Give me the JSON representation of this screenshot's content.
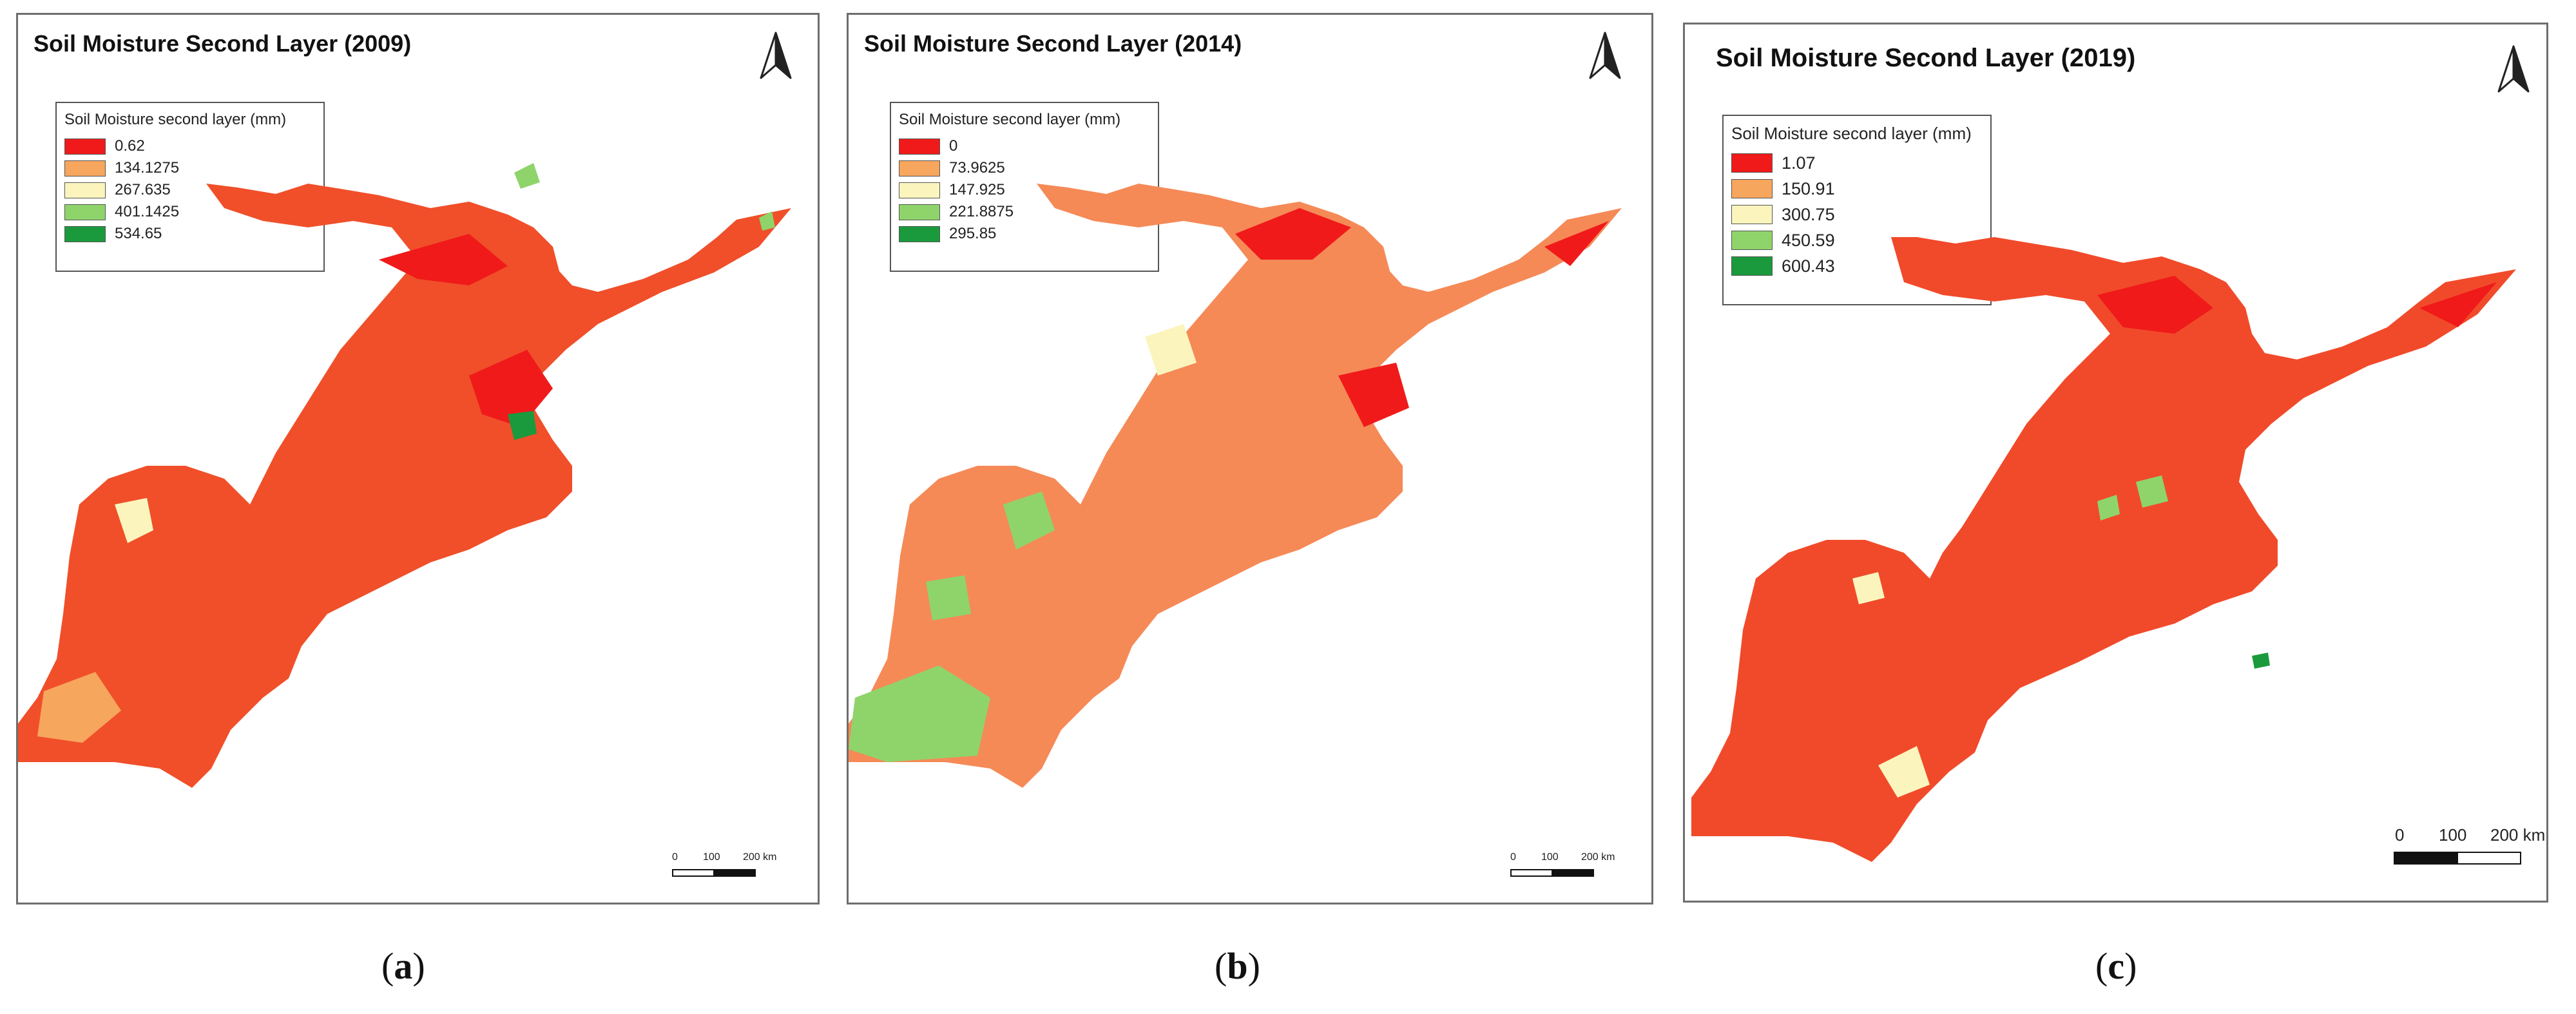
{
  "legend_title": "Soil Moisture second layer (mm)",
  "colors": {
    "class1": "#f01a1a",
    "class2": "#f7a65e",
    "class3": "#fbf5bd",
    "class4": "#8fd46b",
    "class5": "#1a9a3c",
    "map_base_2009": "#f04f2a",
    "map_base_2014": "#f58a57",
    "map_base_2019": "#f14a2a"
  },
  "scale": {
    "labels": [
      "0",
      "100",
      "200 km"
    ]
  },
  "panels": [
    {
      "id": "a",
      "title": "Soil Moisture Second Layer (2009)",
      "caption_letter": "a",
      "legend": [
        "0.62",
        "134.1275",
        "267.635",
        "401.1425",
        "534.65"
      ]
    },
    {
      "id": "b",
      "title": "Soil Moisture Second Layer (2014)",
      "caption_letter": "b",
      "legend": [
        "0",
        "73.9625",
        "147.925",
        "221.8875",
        "295.85"
      ]
    },
    {
      "id": "c",
      "title": "Soil Moisture Second Layer (2019)",
      "caption_letter": "c",
      "legend": [
        "1.07",
        "150.91",
        "300.75",
        "450.59",
        "600.43"
      ]
    }
  ]
}
